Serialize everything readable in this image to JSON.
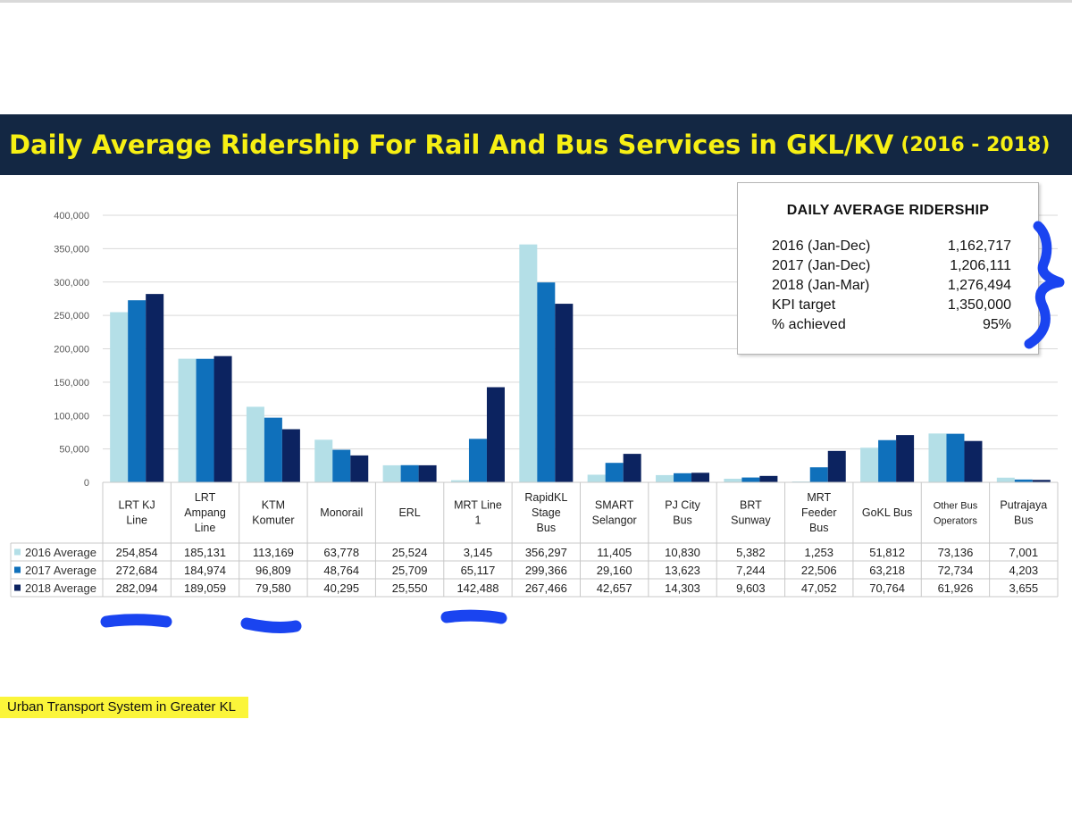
{
  "title": {
    "main": "Daily Average Ridership For Rail And Bus Services in GKL/KV",
    "years": "(2016 - 2018)"
  },
  "summary": {
    "title": "DAILY AVERAGE RIDERSHIP",
    "rows": [
      {
        "label": "2016 (Jan-Dec)",
        "value": "1,162,717"
      },
      {
        "label": "2017 (Jan-Dec)",
        "value": "1,206,111"
      },
      {
        "label": "2018 (Jan-Mar)",
        "value": "1,276,494"
      },
      {
        "label": "KPI target",
        "value": "1,350,000"
      },
      {
        "label": "% achieved",
        "value": "95%"
      }
    ]
  },
  "footer_label": "Urban Transport System in Greater KL",
  "colors": {
    "title_bg": "#132743",
    "title_text": "#f7f014",
    "highlight": "#fbf53a",
    "pen": "#1a44f0"
  },
  "chart_data": {
    "type": "bar",
    "categories": [
      [
        "LRT KJ",
        "Line"
      ],
      [
        "LRT",
        "Ampang",
        "Line"
      ],
      [
        "KTM",
        "Komuter"
      ],
      [
        "Monorail"
      ],
      [
        "ERL"
      ],
      [
        "MRT Line",
        "1"
      ],
      [
        "RapidKL",
        "Stage",
        "Bus"
      ],
      [
        "SMART",
        "Selangor"
      ],
      [
        "PJ City",
        "Bus"
      ],
      [
        "BRT",
        "Sunway"
      ],
      [
        "MRT",
        "Feeder",
        "Bus"
      ],
      [
        "GoKL Bus"
      ],
      [
        "Other Bus",
        "Operators"
      ],
      [
        "Putrajaya",
        "Bus"
      ]
    ],
    "series": [
      {
        "name": "2016 Average",
        "color": "#b4dfe7",
        "values": [
          254854,
          185131,
          113169,
          63778,
          25524,
          3145,
          356297,
          11405,
          10830,
          5382,
          1253,
          51812,
          73136,
          7001
        ],
        "labels": [
          "254,854",
          "185,131",
          "113,169",
          "63,778",
          "25,524",
          "3,145",
          "356,297",
          "11,405",
          "10,830",
          "5,382",
          "1,253",
          "51,812",
          "73,136",
          "7,001"
        ]
      },
      {
        "name": "2017 Average",
        "color": "#0f70bb",
        "values": [
          272684,
          184974,
          96809,
          48764,
          25709,
          65117,
          299366,
          29160,
          13623,
          7244,
          22506,
          63218,
          72734,
          4203
        ],
        "labels": [
          "272,684",
          "184,974",
          "96,809",
          "48,764",
          "25,709",
          "65,117",
          "299,366",
          "29,160",
          "13,623",
          "7,244",
          "22,506",
          "63,218",
          "72,734",
          "4,203"
        ]
      },
      {
        "name": "2018 Average",
        "color": "#0c2360",
        "values": [
          282094,
          189059,
          79580,
          40295,
          25550,
          142488,
          267466,
          42657,
          14303,
          9603,
          47052,
          70764,
          61926,
          3655
        ],
        "labels": [
          "282,094",
          "189,059",
          "79,580",
          "40,295",
          "25,550",
          "142,488",
          "267,466",
          "42,657",
          "14,303",
          "9,603",
          "47,052",
          "70,764",
          "61,926",
          "3,655"
        ]
      }
    ],
    "yticks": [
      0,
      50000,
      100000,
      150000,
      200000,
      250000,
      300000,
      350000,
      400000
    ],
    "ytick_labels": [
      "0",
      "50,000",
      "100,000",
      "150,000",
      "200,000",
      "250,000",
      "300,000",
      "350,000",
      "400,000"
    ],
    "ylim": [
      0,
      400000
    ],
    "grid": true,
    "legend": "data-table"
  }
}
